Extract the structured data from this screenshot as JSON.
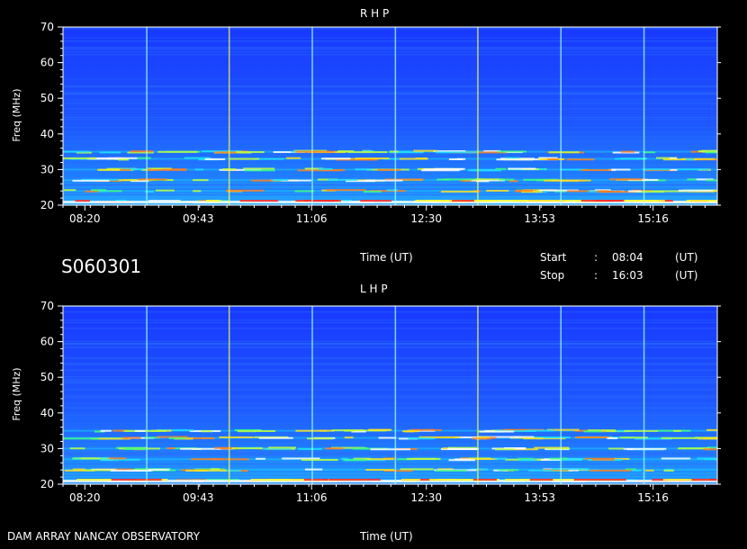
{
  "station_id": "S060301",
  "footer_label": "DAM ARRAY   NANCAY OBSERVATORY",
  "time_axis_label": "Time (UT)",
  "start": {
    "label": "Start",
    "sep": ":",
    "value": "08:04",
    "unit": "(UT)"
  },
  "stop": {
    "label": "Stop",
    "sep": ":",
    "value": "16:03",
    "unit": "(UT)"
  },
  "colors": {
    "background": "#000000",
    "spectrum_base": "#1a4fff",
    "axis": "#ffffff"
  },
  "chart_data": [
    {
      "type": "heatmap",
      "title": "R H P",
      "ylabel": "Freq (MHz)",
      "xlabel": "",
      "ylim": [
        20,
        70
      ],
      "xlim": [
        "08:04",
        "16:03"
      ],
      "yticks": [
        "20",
        "30",
        "40",
        "50",
        "60",
        "70"
      ],
      "xticks": [
        "08:20",
        "09:43",
        "11:06",
        "12:30",
        "13:53",
        "15:16"
      ],
      "emission_bands_mhz": [
        21,
        24,
        27,
        30,
        33,
        35
      ]
    },
    {
      "type": "heatmap",
      "title": "L H P",
      "ylabel": "Freq (MHz)",
      "xlabel": "",
      "ylim": [
        20,
        70
      ],
      "xlim": [
        "08:04",
        "16:03"
      ],
      "yticks": [
        "20",
        "30",
        "40",
        "50",
        "60",
        "70"
      ],
      "xticks": [
        "08:20",
        "09:43",
        "11:06",
        "12:30",
        "13:53",
        "15:16"
      ],
      "emission_bands_mhz": [
        21,
        24,
        27,
        30,
        33,
        35
      ]
    }
  ]
}
